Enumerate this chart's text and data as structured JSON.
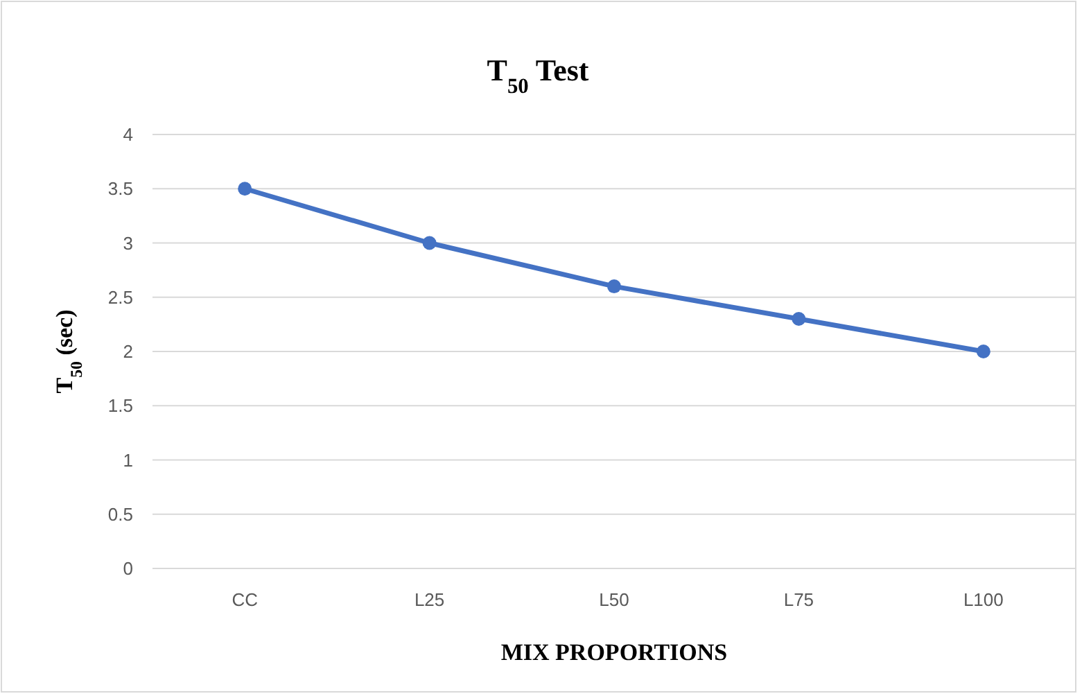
{
  "chart_data": {
    "type": "line",
    "title": "T$_{50}$ Test",
    "xlabel": "MIX PROPORTIONS",
    "ylabel": "T$_{50}$ (sec)",
    "categories": [
      "CC",
      "L25",
      "L50",
      "L75",
      "L100"
    ],
    "series": [
      {
        "color": "#4472c4",
        "values": [
          3.5,
          3.0,
          2.6,
          2.3,
          2.0
        ]
      }
    ],
    "ylim": [
      0,
      4
    ],
    "yticks": [
      0,
      0.5,
      1,
      1.5,
      2,
      2.5,
      3,
      3.5,
      4
    ],
    "grid": "y",
    "marker": "circle",
    "line_style": "solid"
  }
}
